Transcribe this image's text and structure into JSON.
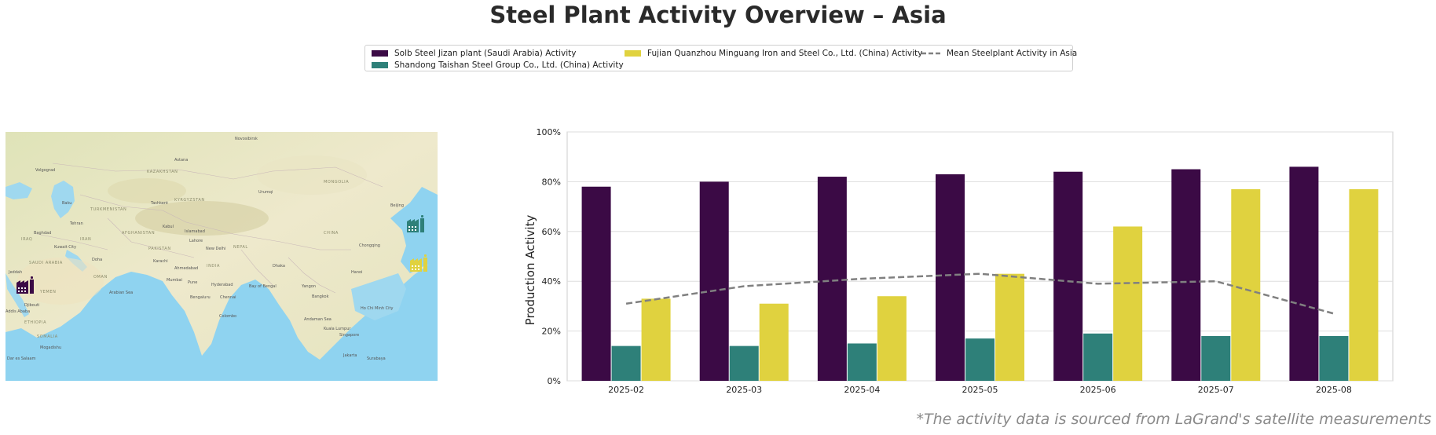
{
  "title": "Steel Plant Activity Overview – Asia",
  "footnote": "*The activity data is sourced from LaGrand's satellite measurements",
  "legend": {
    "items": [
      {
        "label": "Solb Steel Jizan plant (Saudi Arabia) Activity",
        "color": "#3b0a45",
        "kind": "bar"
      },
      {
        "label": "Shandong Taishan Steel Group Co., Ltd. (China) Activity",
        "color": "#2e8079",
        "kind": "bar"
      },
      {
        "label": "Fujian Quanzhou Minguang Iron and Steel Co., Ltd. (China) Activity",
        "color": "#e0d23f",
        "kind": "bar"
      },
      {
        "label": "Mean Steelplant Activity in Asia",
        "color": "#808080",
        "kind": "dashed-line"
      }
    ]
  },
  "map": {
    "place_labels": [
      "Novosibirsk",
      "Volgograd",
      "Astana",
      "KAZAKHSTAN",
      "Baku",
      "Tashkent",
      "TURKMENISTAN",
      "KYRGYZSTAN",
      "Urumqi",
      "MONGOLIA",
      "Tehran",
      "AFGHANISTAN",
      "Kabul",
      "Baghdad",
      "IRAQ",
      "IRAN",
      "PAKISTAN",
      "Islamabad",
      "Lahore",
      "New Delhi",
      "CHINA",
      "Beijing",
      "Chongqing",
      "Kuwait City",
      "Doha",
      "Karachi",
      "INDIA",
      "NEPAL",
      "Dhaka",
      "Jeddah",
      "SAUDI ARABIA",
      "OMAN",
      "Ahmedabad",
      "Mumbai",
      "Pune",
      "Hyderabad",
      "YEMEN",
      "Arabian Sea",
      "Bengaluru",
      "Chennai",
      "Bay of Bengal",
      "Yangon",
      "Bangkok",
      "Hanoi",
      "Ho Chi Minh City",
      "Colombo",
      "ETHIOPIA",
      "SOMALIA",
      "Mogadishu",
      "Kuala Lumpur",
      "Singapore",
      "Jakarta",
      "Surabaya",
      "Dar es Salaam",
      "Addis Ababa",
      "Djibouti",
      "Andaman Sea"
    ],
    "markers": [
      {
        "name": "solb-steel-jizan",
        "color": "#3b0a45",
        "icon": "factory-icon"
      },
      {
        "name": "shandong-taishan",
        "color": "#2e8079",
        "icon": "factory-icon"
      },
      {
        "name": "fujian-quanzhou-minguang",
        "color": "#e0d23f",
        "icon": "factory-icon"
      }
    ]
  },
  "chart_data": {
    "type": "bar",
    "title": "",
    "xlabel": "",
    "ylabel": "Production Activity",
    "ylim": [
      0,
      100
    ],
    "yticks": [
      "0%",
      "20%",
      "40%",
      "60%",
      "80%",
      "100%"
    ],
    "grid": "horizontal",
    "categories": [
      "2025-02",
      "2025-03",
      "2025-04",
      "2025-05",
      "2025-06",
      "2025-07",
      "2025-08"
    ],
    "series": [
      {
        "name": "Solb Steel Jizan plant (Saudi Arabia) Activity",
        "color": "#3b0a45",
        "values": [
          78,
          80,
          82,
          83,
          84,
          85,
          86
        ]
      },
      {
        "name": "Shandong Taishan Steel Group Co., Ltd. (China) Activity",
        "color": "#2e8079",
        "values": [
          14,
          14,
          15,
          17,
          19,
          18,
          18
        ]
      },
      {
        "name": "Fujian Quanzhou Minguang Iron and Steel Co., Ltd. (China) Activity",
        "color": "#e0d23f",
        "values": [
          33,
          31,
          34,
          43,
          62,
          77,
          77
        ]
      }
    ],
    "line": {
      "name": "Mean Steelplant Activity in Asia",
      "color": "#808080",
      "style": "dashed",
      "values": [
        31,
        38,
        41,
        43,
        39,
        40,
        27
      ]
    }
  }
}
